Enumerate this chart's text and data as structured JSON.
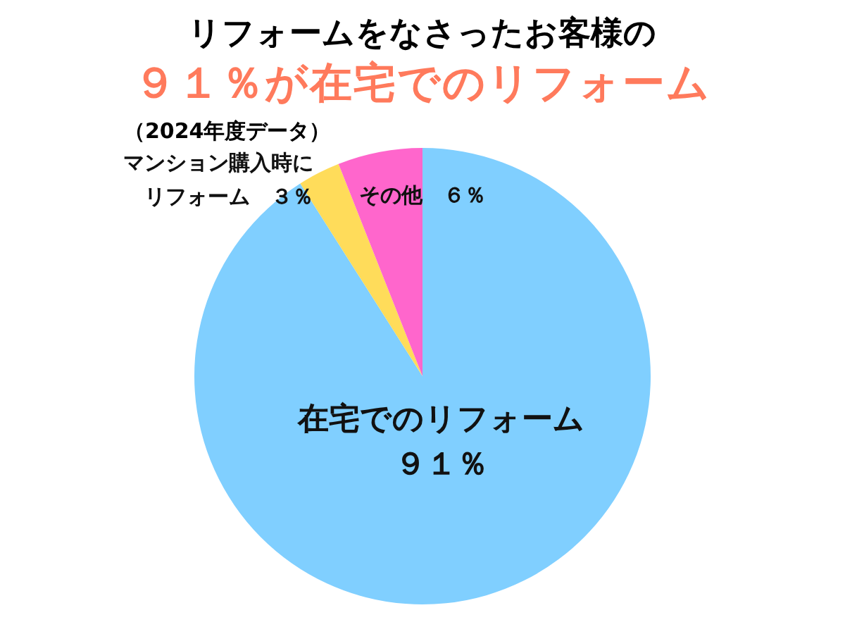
{
  "chart_data": {
    "type": "pie",
    "title": "リフォームをなさったお客様の",
    "subtitle": "９１％が在宅でのリフォーム",
    "annotations": [
      "（2024年度データ）"
    ],
    "categories": [
      "在宅でのリフォーム",
      "マンション購入時にリフォーム",
      "その他"
    ],
    "values": [
      91,
      3,
      6
    ],
    "value_labels": [
      "９１％",
      "３％",
      "６％"
    ],
    "colors": [
      "#80cfff",
      "#ffdc5a",
      "#ff66cc"
    ],
    "legend": false
  }
}
